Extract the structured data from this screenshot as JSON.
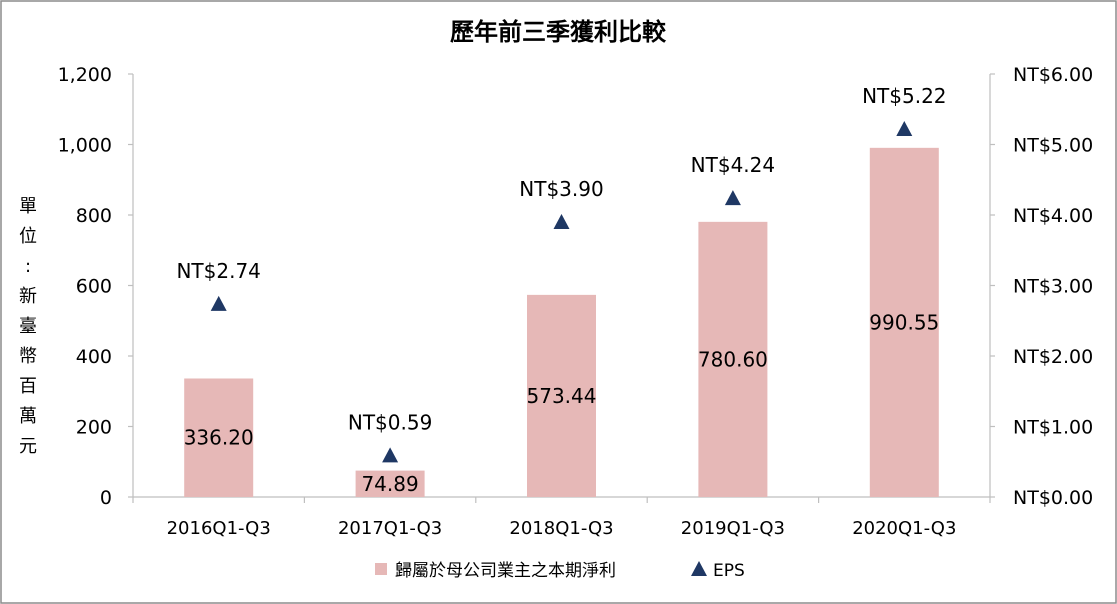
{
  "chart_data": {
    "type": "bar",
    "title": "歷年前三季獲利比較",
    "ylabel": "單位：新臺幣百萬元",
    "categories": [
      "2016Q1-Q3",
      "2017Q1-Q3",
      "2018Q1-Q3",
      "2019Q1-Q3",
      "2020Q1-Q3"
    ],
    "series": [
      {
        "name": "歸屬於母公司業主之本期淨利",
        "type": "bar",
        "axis": "left",
        "color": "#e6b8b7",
        "values": [
          336.2,
          74.89,
          573.44,
          780.6,
          990.55
        ],
        "labels": [
          "336.20",
          "74.89",
          "573.44",
          "780.60",
          "990.55"
        ]
      },
      {
        "name": "EPS",
        "type": "scatter",
        "marker": "triangle",
        "axis": "right",
        "color": "#1f3864",
        "values": [
          2.74,
          0.59,
          3.9,
          4.24,
          5.22
        ],
        "labels": [
          "NT$2.74",
          "NT$0.59",
          "NT$3.90",
          "NT$4.24",
          "NT$5.22"
        ]
      }
    ],
    "y_left": {
      "ylim": [
        0,
        1200
      ],
      "ticks": [
        0,
        200,
        400,
        600,
        800,
        1000,
        1200
      ],
      "tick_labels": [
        "0",
        "200",
        "400",
        "600",
        "800",
        "1,000",
        "1,200"
      ]
    },
    "y_right": {
      "ylim": [
        0,
        6
      ],
      "ticks": [
        0,
        1,
        2,
        3,
        4,
        5,
        6
      ],
      "tick_labels": [
        "NT$0.00",
        "NT$1.00",
        "NT$2.00",
        "NT$3.00",
        "NT$4.00",
        "NT$5.00",
        "NT$6.00"
      ]
    },
    "grid": false,
    "legend_position": "bottom"
  }
}
